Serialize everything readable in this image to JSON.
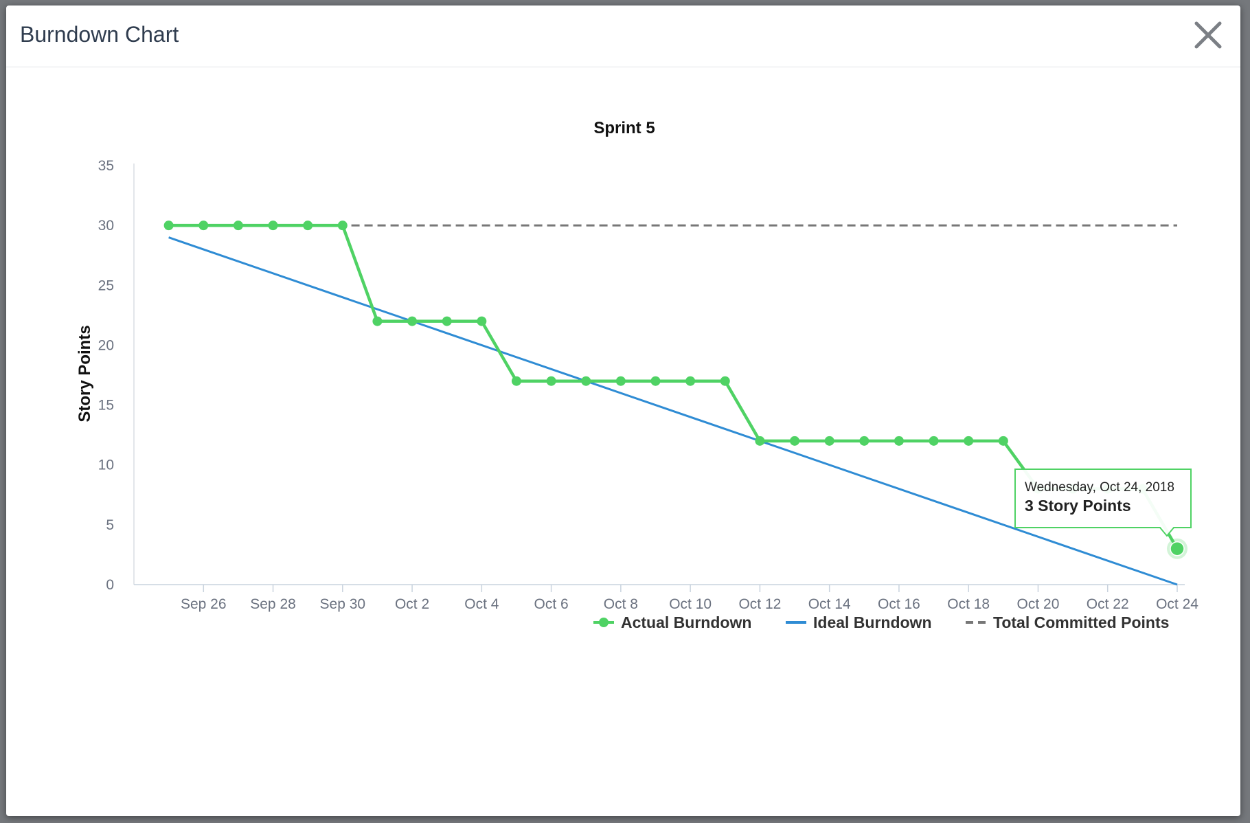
{
  "modal": {
    "title": "Burndown Chart",
    "close_icon": "close-icon"
  },
  "colors": {
    "actual": "#4fd264",
    "ideal": "#2f8cd4",
    "committed": "#777777",
    "axis_text": "#6b7280",
    "tooltip_border": "#4fd264"
  },
  "tooltip": {
    "date": "Wednesday, Oct 24, 2018",
    "value": "3 Story Points"
  },
  "chart_data": {
    "type": "line",
    "title": "Sprint 5",
    "xlabel": "",
    "ylabel": "Story Points",
    "ylim": [
      0,
      35
    ],
    "yticks": [
      0,
      5,
      10,
      15,
      20,
      25,
      30,
      35
    ],
    "x_range": [
      "2018-09-24",
      "2018-10-24"
    ],
    "x_ticks": [
      {
        "date": "2018-09-26",
        "label": "Sep 26"
      },
      {
        "date": "2018-09-28",
        "label": "Sep 28"
      },
      {
        "date": "2018-09-30",
        "label": "Sep 30"
      },
      {
        "date": "2018-10-02",
        "label": "Oct 2"
      },
      {
        "date": "2018-10-04",
        "label": "Oct 4"
      },
      {
        "date": "2018-10-06",
        "label": "Oct 6"
      },
      {
        "date": "2018-10-08",
        "label": "Oct 8"
      },
      {
        "date": "2018-10-10",
        "label": "Oct 10"
      },
      {
        "date": "2018-10-12",
        "label": "Oct 12"
      },
      {
        "date": "2018-10-14",
        "label": "Oct 14"
      },
      {
        "date": "2018-10-16",
        "label": "Oct 16"
      },
      {
        "date": "2018-10-18",
        "label": "Oct 18"
      },
      {
        "date": "2018-10-20",
        "label": "Oct 20"
      },
      {
        "date": "2018-10-22",
        "label": "Oct 22"
      },
      {
        "date": "2018-10-24",
        "label": "Oct 24"
      }
    ],
    "legend_position": "bottom-right",
    "grid": false,
    "series": [
      {
        "name": "Actual Burndown",
        "style": "line-with-markers",
        "points": [
          {
            "x": "2018-09-25",
            "y": 30
          },
          {
            "x": "2018-09-26",
            "y": 30
          },
          {
            "x": "2018-09-27",
            "y": 30
          },
          {
            "x": "2018-09-28",
            "y": 30
          },
          {
            "x": "2018-09-29",
            "y": 30
          },
          {
            "x": "2018-09-30",
            "y": 30
          },
          {
            "x": "2018-10-01",
            "y": 22
          },
          {
            "x": "2018-10-02",
            "y": 22
          },
          {
            "x": "2018-10-03",
            "y": 22
          },
          {
            "x": "2018-10-04",
            "y": 22
          },
          {
            "x": "2018-10-05",
            "y": 17
          },
          {
            "x": "2018-10-06",
            "y": 17
          },
          {
            "x": "2018-10-07",
            "y": 17
          },
          {
            "x": "2018-10-08",
            "y": 17
          },
          {
            "x": "2018-10-09",
            "y": 17
          },
          {
            "x": "2018-10-10",
            "y": 17
          },
          {
            "x": "2018-10-11",
            "y": 17
          },
          {
            "x": "2018-10-12",
            "y": 12
          },
          {
            "x": "2018-10-13",
            "y": 12
          },
          {
            "x": "2018-10-14",
            "y": 12
          },
          {
            "x": "2018-10-15",
            "y": 12
          },
          {
            "x": "2018-10-16",
            "y": 12
          },
          {
            "x": "2018-10-17",
            "y": 12
          },
          {
            "x": "2018-10-18",
            "y": 12
          },
          {
            "x": "2018-10-19",
            "y": 12
          },
          {
            "x": "2018-10-20",
            "y": 8
          },
          {
            "x": "2018-10-21",
            "y": 8
          },
          {
            "x": "2018-10-22",
            "y": 8
          },
          {
            "x": "2018-10-23",
            "y": 8
          },
          {
            "x": "2018-10-24",
            "y": 3
          }
        ]
      },
      {
        "name": "Ideal Burndown",
        "style": "line",
        "points": [
          {
            "x": "2018-09-25",
            "y": 29
          },
          {
            "x": "2018-10-24",
            "y": 0
          }
        ]
      },
      {
        "name": "Total Committed Points",
        "style": "dashed",
        "points": [
          {
            "x": "2018-09-25",
            "y": 30
          },
          {
            "x": "2018-10-24",
            "y": 30
          }
        ]
      }
    ]
  }
}
